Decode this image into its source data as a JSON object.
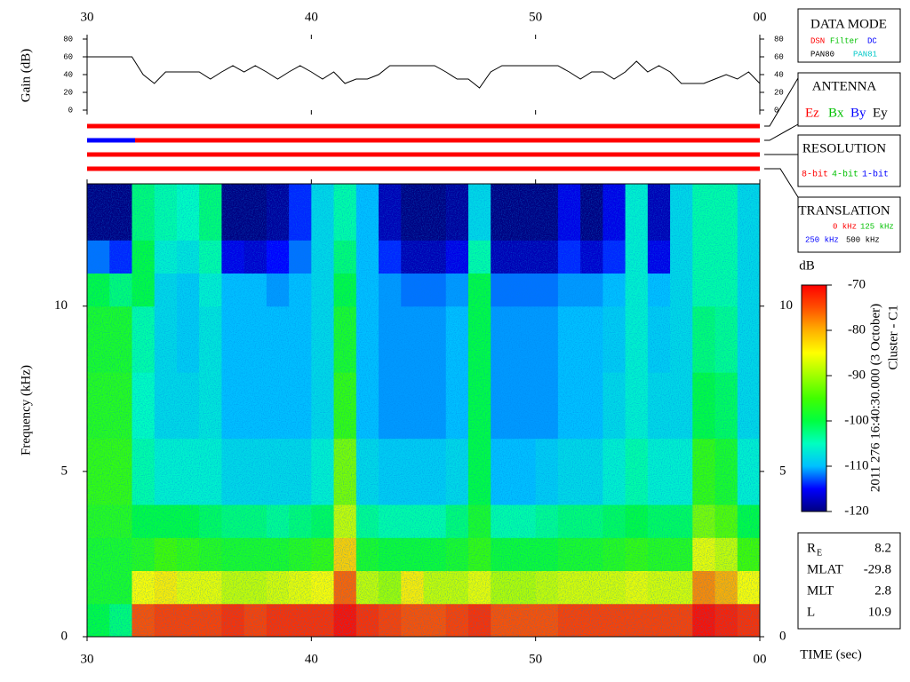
{
  "chart_data": [
    {
      "type": "line",
      "ylabel": "Gain (dB)",
      "color": "#000000",
      "x": [
        30,
        30.5,
        31,
        31.5,
        32,
        32.5,
        33,
        33.5,
        34,
        34.5,
        35,
        35.5,
        36,
        36.5,
        37,
        37.5,
        38,
        38.5,
        39,
        39.5,
        40,
        40.5,
        41,
        41.5,
        42,
        42.5,
        43,
        43.5,
        44,
        44.5,
        45,
        45.5,
        46,
        46.5,
        47,
        47.5,
        48,
        48.5,
        49,
        49.5,
        50,
        50.5,
        51,
        51.5,
        52,
        52.5,
        53,
        53.5,
        54,
        54.5,
        55,
        55.5,
        56,
        56.5,
        57,
        57.5,
        58,
        58.5,
        59,
        59.5,
        60
      ],
      "values": [
        60,
        60,
        60,
        60,
        60,
        40,
        30,
        43,
        43,
        43,
        43,
        35,
        43,
        50,
        43,
        50,
        43,
        35,
        43,
        50,
        43,
        35,
        43,
        30,
        35,
        35,
        40,
        50,
        50,
        50,
        50,
        50,
        43,
        35,
        35,
        25,
        43,
        50,
        50,
        50,
        50,
        50,
        50,
        43,
        35,
        43,
        43,
        35,
        43,
        55,
        43,
        50,
        43,
        30,
        30,
        30,
        35,
        40,
        35,
        43,
        30
      ],
      "xlim": [
        30,
        60
      ],
      "xticks": [
        30,
        40,
        50,
        {
          "value": 60,
          "label": "00"
        }
      ],
      "ylim": [
        0,
        80
      ],
      "yticks": [
        0,
        20,
        40,
        60,
        80
      ]
    },
    {
      "type": "heatmap",
      "xlabel": "TIME (sec)",
      "ylabel": "Frequency (kHz)",
      "x_edges": [
        30,
        31,
        32,
        33,
        34,
        35,
        36,
        37,
        38,
        39,
        40,
        41,
        42,
        43,
        44,
        45,
        46,
        47,
        48,
        49,
        50,
        51,
        52,
        53,
        54,
        55,
        56,
        57,
        58,
        59,
        60
      ],
      "y_edges": [
        0,
        1,
        2,
        3,
        4,
        6,
        8,
        10,
        11,
        12,
        13.7
      ],
      "values": [
        [
          -100,
          -98,
          -98,
          -97,
          -96,
          -97,
          -98,
          -100,
          -112,
          -120
        ],
        [
          -102,
          -98,
          -98,
          -97,
          -96,
          -97,
          -98,
          -102,
          -114,
          -120
        ],
        [
          -75,
          -85,
          -97,
          -100,
          -104,
          -105,
          -104,
          -100,
          -100,
          -102
        ],
        [
          -74,
          -84,
          -95,
          -100,
          -106,
          -108,
          -108,
          -108,
          -106,
          -104
        ],
        [
          -74,
          -86,
          -96,
          -100,
          -106,
          -108,
          -109,
          -109,
          -107,
          -105
        ],
        [
          -74,
          -86,
          -97,
          -101,
          -106,
          -107,
          -107,
          -106,
          -104,
          -102
        ],
        [
          -73,
          -88,
          -98,
          -102,
          -108,
          -110,
          -110,
          -110,
          -116,
          -120
        ],
        [
          -74,
          -88,
          -98,
          -102,
          -108,
          -110,
          -110,
          -110,
          -117,
          -120
        ],
        [
          -73,
          -87,
          -98,
          -103,
          -108,
          -110,
          -110,
          -111,
          -115,
          -119
        ],
        [
          -73,
          -86,
          -97,
          -102,
          -108,
          -110,
          -110,
          -110,
          -112,
          -114
        ],
        [
          -73,
          -85,
          -96,
          -101,
          -106,
          -108,
          -108,
          -108,
          -108,
          -108
        ],
        [
          -71,
          -76,
          -82,
          -88,
          -92,
          -96,
          -98,
          -100,
          -102,
          -104
        ],
        [
          -73,
          -88,
          -98,
          -103,
          -108,
          -110,
          -110,
          -110,
          -110,
          -110
        ],
        [
          -74,
          -90,
          -99,
          -104,
          -109,
          -111,
          -111,
          -111,
          -114,
          -118
        ],
        [
          -75,
          -84,
          -99,
          -104,
          -109,
          -111,
          -111,
          -112,
          -118,
          -120
        ],
        [
          -75,
          -88,
          -99,
          -104,
          -109,
          -111,
          -111,
          -112,
          -118,
          -120
        ],
        [
          -74,
          -88,
          -98,
          -102,
          -108,
          -110,
          -110,
          -111,
          -116,
          -119
        ],
        [
          -73,
          -86,
          -96,
          -98,
          -100,
          -100,
          -100,
          -100,
          -104,
          -108
        ],
        [
          -75,
          -89,
          -99,
          -104,
          -110,
          -111,
          -111,
          -112,
          -118,
          -120
        ],
        [
          -75,
          -89,
          -99,
          -104,
          -110,
          -111,
          -111,
          -112,
          -118,
          -120
        ],
        [
          -75,
          -88,
          -99,
          -103,
          -109,
          -111,
          -111,
          -112,
          -118,
          -120
        ],
        [
          -74,
          -87,
          -98,
          -102,
          -108,
          -110,
          -110,
          -111,
          -114,
          -116
        ],
        [
          -74,
          -87,
          -98,
          -102,
          -108,
          -110,
          -110,
          -111,
          -117,
          -120
        ],
        [
          -74,
          -87,
          -97,
          -101,
          -106,
          -108,
          -109,
          -110,
          -114,
          -116
        ],
        [
          -74,
          -86,
          -96,
          -100,
          -104,
          -106,
          -106,
          -106,
          -106,
          -106
        ],
        [
          -74,
          -87,
          -97,
          -101,
          -106,
          -108,
          -109,
          -110,
          -116,
          -118
        ],
        [
          -74,
          -87,
          -97,
          -101,
          -106,
          -108,
          -108,
          -108,
          -108,
          -108
        ],
        [
          -71,
          -78,
          -86,
          -92,
          -96,
          -100,
          -102,
          -104,
          -104,
          -104
        ],
        [
          -72,
          -80,
          -88,
          -94,
          -98,
          -101,
          -103,
          -104,
          -104,
          -104
        ],
        [
          -73,
          -85,
          -95,
          -100,
          -106,
          -108,
          -108,
          -108,
          -108,
          -108
        ]
      ],
      "xlim": [
        30,
        60
      ],
      "xticks": [
        30,
        40,
        50,
        {
          "value": 60,
          "label": "00"
        }
      ],
      "ylim": [
        0,
        13.7
      ],
      "yticks": [
        0,
        5,
        10
      ],
      "zlabel": "dB",
      "zlim": [
        -120,
        -70
      ],
      "zticks": [
        -70,
        -80,
        -90,
        -100,
        -110,
        -120
      ],
      "colormap": [
        "#000080",
        "#0000ff",
        "#00c0ff",
        "#00ffc0",
        "#00ff40",
        "#40ff00",
        "#a0ff00",
        "#ffff00",
        "#ffb000",
        "#ff5000",
        "#ff0000"
      ]
    }
  ],
  "panels": {
    "data_mode": {
      "title": "DATA MODE",
      "items": [
        "DSN",
        "Filter",
        "DC",
        "PAN80",
        "PAN81"
      ]
    },
    "antenna": {
      "title": "ANTENNA",
      "items": [
        "Ez",
        "Bx",
        "By",
        "Ey"
      ]
    },
    "resolution": {
      "title": "RESOLUTION",
      "items": [
        "8-bit",
        "4-bit",
        "1-bit"
      ]
    },
    "translation": {
      "title": "TRANSLATION",
      "items": [
        "0 kHz",
        "125 kHz",
        "250 kHz",
        "500 kHz"
      ]
    }
  },
  "timestamp": "2011 276 16:40:30.000 (3 October)",
  "spacecraft": "Cluster - C1",
  "ephemeris": [
    {
      "label": "R",
      "sub": "E",
      "value": 8.2
    },
    {
      "label": "MLAT",
      "value": -29.8
    },
    {
      "label": "MLT",
      "value": 2.8
    },
    {
      "label": "L",
      "value": 10.9
    }
  ]
}
